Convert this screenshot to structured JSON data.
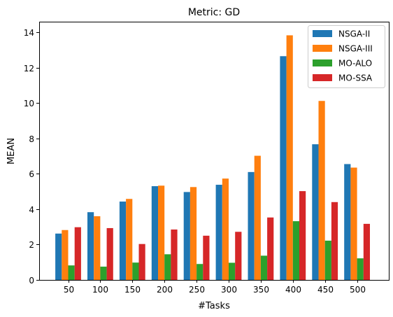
{
  "chart_data": {
    "type": "bar",
    "title": "Metric: GD",
    "xlabel": "#Tasks",
    "ylabel": "MEAN",
    "categories": [
      "50",
      "100",
      "150",
      "200",
      "250",
      "300",
      "350",
      "400",
      "450",
      "500"
    ],
    "ylim": [
      0,
      14.6
    ],
    "yticks": [
      0,
      2,
      4,
      6,
      8,
      10,
      12,
      14
    ],
    "grid": false,
    "legend_position": "top-right",
    "series": [
      {
        "name": "NSGA-II",
        "color": "#1f77b4",
        "values": [
          2.62,
          3.83,
          4.43,
          5.3,
          4.97,
          5.38,
          6.1,
          12.65,
          7.67,
          6.55
        ]
      },
      {
        "name": "NSGA-III",
        "color": "#ff7f0e",
        "values": [
          2.82,
          3.6,
          4.58,
          5.33,
          5.25,
          5.73,
          7.02,
          13.83,
          10.12,
          6.35
        ]
      },
      {
        "name": "MO-ALO",
        "color": "#2ca02c",
        "values": [
          0.82,
          0.75,
          0.98,
          1.45,
          0.9,
          0.97,
          1.37,
          3.32,
          2.22,
          1.22
        ]
      },
      {
        "name": "MO-SSA",
        "color": "#d62728",
        "values": [
          2.98,
          2.93,
          2.03,
          2.85,
          2.5,
          2.72,
          3.53,
          5.02,
          4.4,
          3.17
        ]
      }
    ]
  }
}
